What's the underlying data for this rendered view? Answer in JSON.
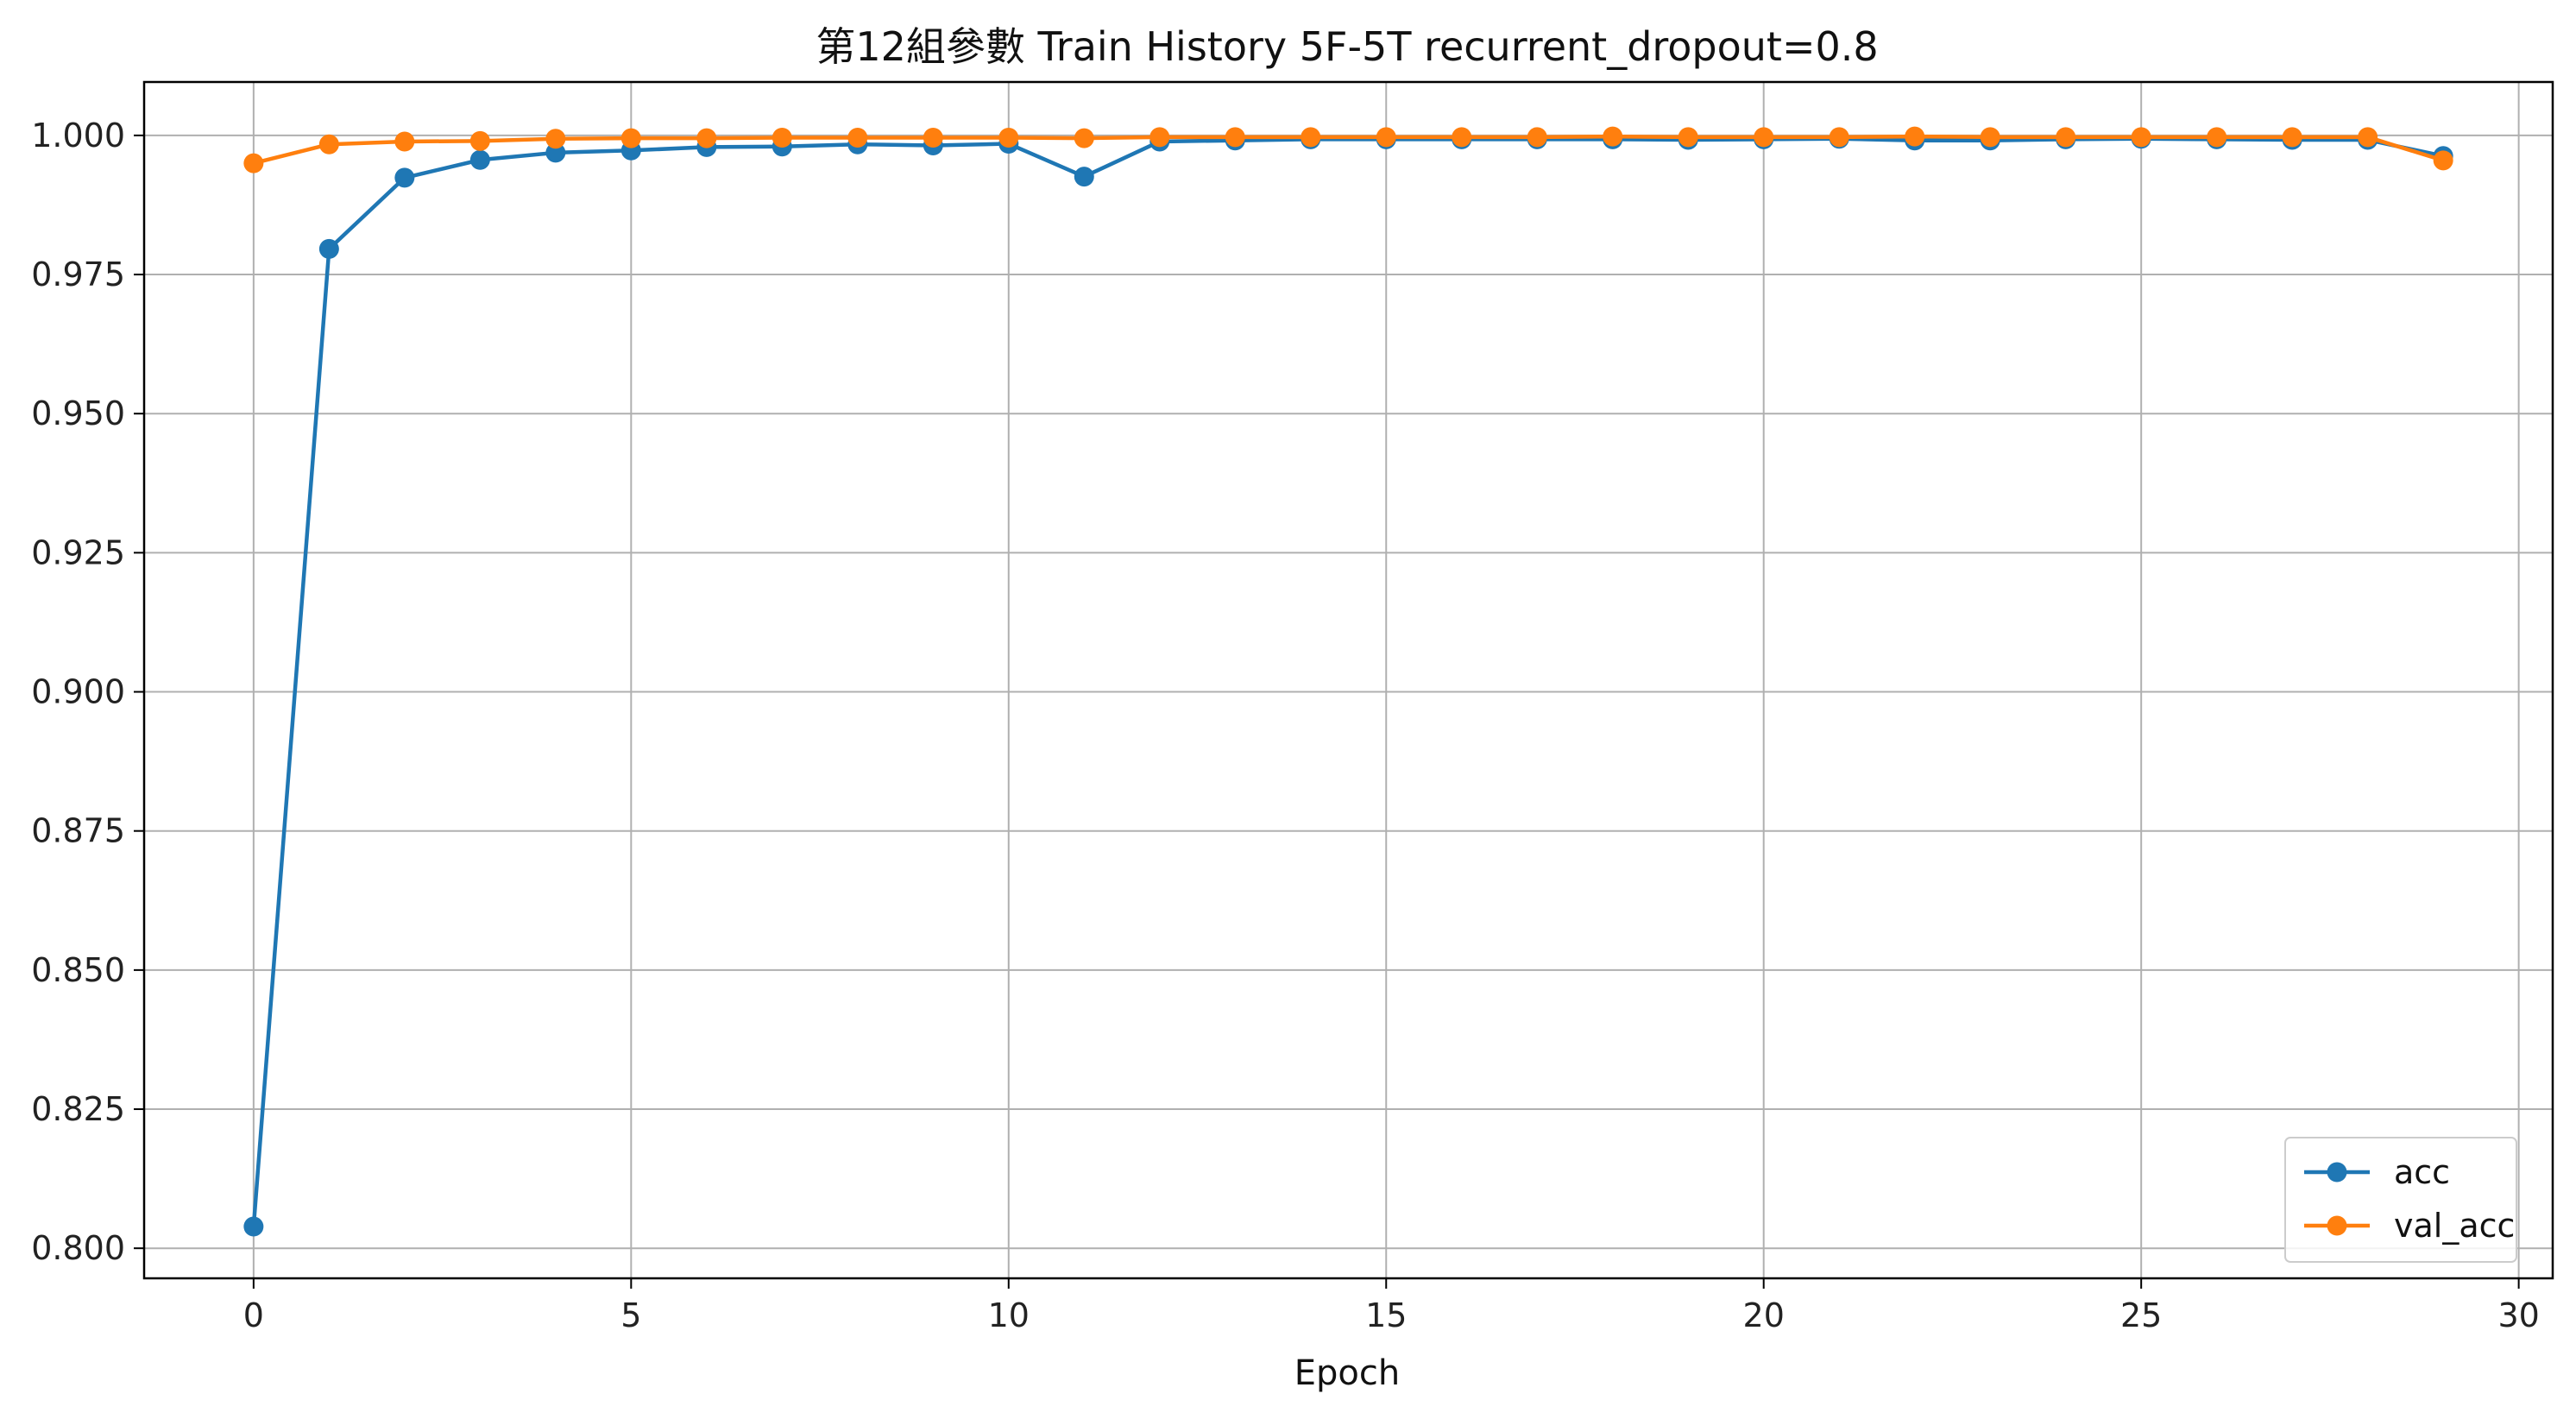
{
  "chart_data": {
    "type": "line",
    "title": "第12組參數 Train History 5F-5T recurrent_dropout=0.8",
    "xlabel": "Epoch",
    "ylabel": "",
    "xlim": [
      -1.45,
      30.45
    ],
    "ylim": [
      0.7946,
      1.0096
    ],
    "xticks": [
      0,
      5,
      10,
      15,
      20,
      25,
      30
    ],
    "yticks": [
      0.8,
      0.825,
      0.85,
      0.875,
      0.9,
      0.925,
      0.95,
      0.975,
      1.0
    ],
    "ytick_labels": [
      "0.800",
      "0.825",
      "0.850",
      "0.875",
      "0.900",
      "0.925",
      "0.950",
      "0.975",
      "1.000"
    ],
    "grid": true,
    "legend_position": "bottom-right",
    "x": [
      0,
      1,
      2,
      3,
      4,
      5,
      6,
      7,
      8,
      9,
      10,
      11,
      12,
      13,
      14,
      15,
      16,
      17,
      18,
      19,
      20,
      21,
      22,
      23,
      24,
      25,
      26,
      27,
      28,
      29
    ],
    "series": [
      {
        "name": "acc",
        "color": "#1f77b4",
        "values": [
          0.8039,
          0.9796,
          0.9924,
          0.9956,
          0.9969,
          0.9973,
          0.9979,
          0.998,
          0.9984,
          0.9982,
          0.9985,
          0.9926,
          0.9989,
          0.9991,
          0.9993,
          0.9993,
          0.9993,
          0.9993,
          0.9993,
          0.9992,
          0.9993,
          0.9994,
          0.9991,
          0.9991,
          0.9993,
          0.9994,
          0.9993,
          0.9992,
          0.9992,
          0.9963
        ]
      },
      {
        "name": "val_acc",
        "color": "#ff7f0e",
        "values": [
          0.995,
          0.9984,
          0.9989,
          0.999,
          0.9994,
          0.9995,
          0.9995,
          0.9996,
          0.9996,
          0.9996,
          0.9996,
          0.9995,
          0.9997,
          0.9997,
          0.9997,
          0.9997,
          0.9997,
          0.9997,
          0.9998,
          0.9997,
          0.9997,
          0.9997,
          0.9998,
          0.9997,
          0.9997,
          0.9997,
          0.9997,
          0.9997,
          0.9997,
          0.9955
        ]
      }
    ]
  }
}
